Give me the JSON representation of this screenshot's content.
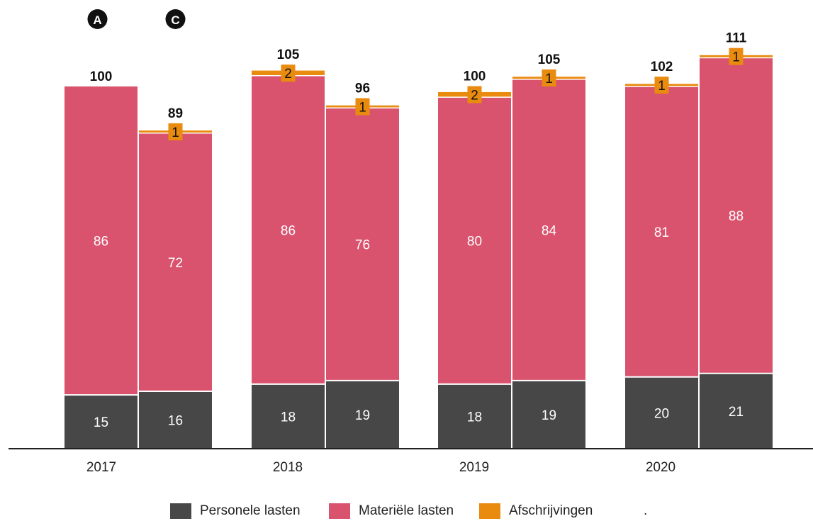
{
  "colors": {
    "personele": "#474747",
    "materiele": "#d9536e",
    "afschrijvingen": "#e98b0f",
    "axis": "#222222"
  },
  "chart_data": {
    "type": "bar",
    "stacked": true,
    "markers": [
      "A",
      "C"
    ],
    "categories": [
      "2017",
      "2018",
      "2019",
      "2020"
    ],
    "bars": [
      {
        "year": "2017",
        "marker": "A",
        "personele": 15,
        "materiele": 86,
        "afschrijvingen": null,
        "total": 100
      },
      {
        "year": "2017",
        "marker": "C",
        "personele": 16,
        "materiele": 72,
        "afschrijvingen": 1,
        "total": 89
      },
      {
        "year": "2018",
        "marker": "",
        "personele": 18,
        "materiele": 86,
        "afschrijvingen": 2,
        "total": 105
      },
      {
        "year": "2018",
        "marker": "",
        "personele": 19,
        "materiele": 76,
        "afschrijvingen": 1,
        "total": 96
      },
      {
        "year": "2019",
        "marker": "",
        "personele": 18,
        "materiele": 80,
        "afschrijvingen": 2,
        "total": 100
      },
      {
        "year": "2019",
        "marker": "",
        "personele": 19,
        "materiele": 84,
        "afschrijvingen": 1,
        "total": 105
      },
      {
        "year": "2020",
        "marker": "",
        "personele": 20,
        "materiele": 81,
        "afschrijvingen": 1,
        "total": 102
      },
      {
        "year": "2020",
        "marker": "",
        "personele": 21,
        "materiele": 88,
        "afschrijvingen": 1,
        "total": 111
      }
    ],
    "series": [
      {
        "name": "Personele lasten",
        "key": "personele"
      },
      {
        "name": "Materiële lasten",
        "key": "materiele"
      },
      {
        "name": "Afschrijvingen",
        "key": "afschrijvingen"
      }
    ],
    "ylim": [
      0,
      117
    ],
    "grid": false,
    "legend_position": "bottom-center",
    "legend_suffix": "."
  }
}
